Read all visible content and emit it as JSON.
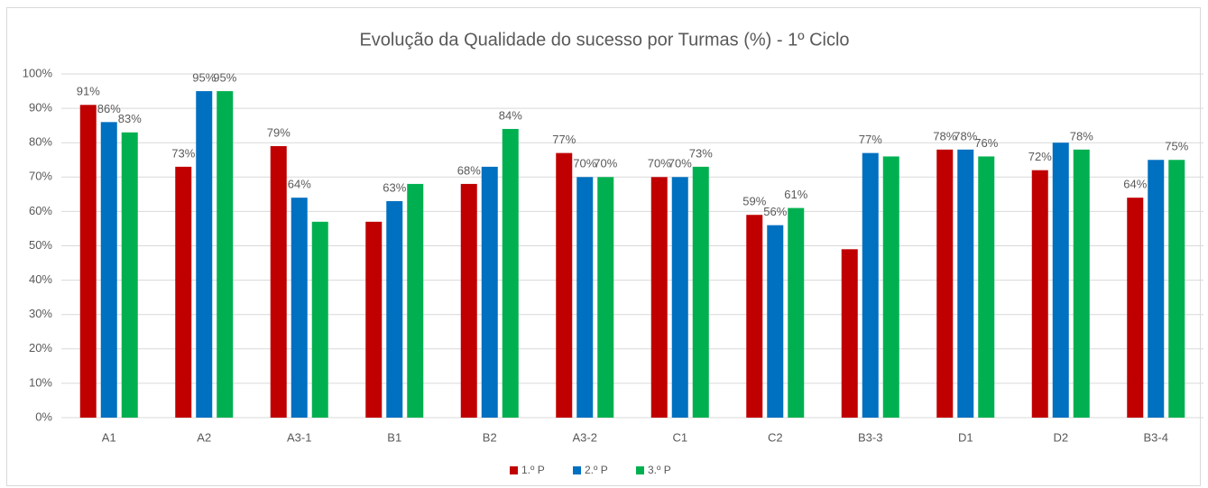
{
  "chart_data": {
    "type": "bar",
    "title": "Evolução da Qualidade do sucesso por Turmas (%) - 1º Ciclo",
    "categories": [
      "A1",
      "A2",
      "A3-1",
      "B1",
      "B2",
      "A3-2",
      "C1",
      "C2",
      "B3-3",
      "D1",
      "D2",
      "B3-4"
    ],
    "series": [
      {
        "name": "1.º P",
        "color": "#c00000",
        "values": [
          91,
          73,
          79,
          57,
          68,
          77,
          70,
          59,
          49,
          78,
          72,
          64
        ],
        "value_labels": [
          "91%",
          "73%",
          "79%",
          null,
          "68%",
          "77%",
          "70%",
          "59%",
          null,
          "78%",
          "72%",
          "64%"
        ]
      },
      {
        "name": "2.º P",
        "color": "#0070c0",
        "values": [
          86,
          95,
          64,
          63,
          73,
          70,
          70,
          56,
          77,
          78,
          80,
          75
        ],
        "value_labels": [
          "86%",
          "95%",
          "64%",
          "63%",
          null,
          "70%",
          "70%",
          "56%",
          "77%",
          "78%",
          null,
          null
        ]
      },
      {
        "name": "3.º P",
        "color": "#00b050",
        "values": [
          83,
          95,
          57,
          68,
          84,
          70,
          73,
          61,
          76,
          76,
          78,
          75
        ],
        "value_labels": [
          "83%",
          "95%",
          null,
          null,
          "84%",
          "70%",
          "73%",
          "61%",
          null,
          "76%",
          "78%",
          "75%"
        ]
      }
    ],
    "ylim": [
      0,
      100
    ],
    "yticks": [
      {
        "value": 0,
        "label": "0%"
      },
      {
        "value": 10,
        "label": "10%"
      },
      {
        "value": 20,
        "label": "20%"
      },
      {
        "value": 30,
        "label": "30%"
      },
      {
        "value": 40,
        "label": "40%"
      },
      {
        "value": 50,
        "label": "50%"
      },
      {
        "value": 60,
        "label": "60%"
      },
      {
        "value": 70,
        "label": "70%"
      },
      {
        "value": 80,
        "label": "80%"
      },
      {
        "value": 90,
        "label": "90%"
      },
      {
        "value": 100,
        "label": "100%"
      }
    ],
    "grid": true,
    "legend": "bottom"
  }
}
